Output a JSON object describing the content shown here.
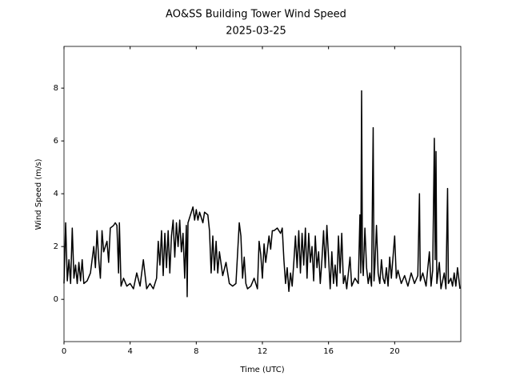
{
  "chart_data": {
    "type": "line",
    "title": "AO&SS Building Tower Wind Speed",
    "subtitle": "2025-03-25",
    "xlabel": "Time (UTC)",
    "ylabel": "Wind Speed (m/s)",
    "color": "#000000",
    "xlim": [
      0,
      24
    ],
    "ylim": [
      -1.6,
      9.58
    ],
    "xticks": [
      0,
      4,
      8,
      12,
      16,
      20
    ],
    "yticks": [
      0,
      2,
      4,
      6,
      8
    ],
    "x": [
      0,
      0.1,
      0.2,
      0.3,
      0.4,
      0.5,
      0.6,
      0.7,
      0.8,
      0.9,
      1.0,
      1.1,
      1.2,
      1.4,
      1.6,
      1.8,
      1.9,
      2.0,
      2.1,
      2.2,
      2.3,
      2.4,
      2.6,
      2.7,
      2.8,
      3.0,
      3.1,
      3.2,
      3.3,
      3.35,
      3.45,
      3.6,
      3.8,
      4.0,
      4.2,
      4.4,
      4.6,
      4.8,
      5.0,
      5.2,
      5.4,
      5.6,
      5.7,
      5.8,
      5.9,
      6.0,
      6.1,
      6.2,
      6.3,
      6.4,
      6.5,
      6.6,
      6.7,
      6.8,
      6.9,
      7.0,
      7.1,
      7.2,
      7.3,
      7.4,
      7.45,
      7.5,
      7.6,
      7.8,
      7.9,
      8.0,
      8.1,
      8.2,
      8.4,
      8.5,
      8.7,
      8.8,
      8.9,
      9.0,
      9.1,
      9.2,
      9.3,
      9.4,
      9.6,
      9.8,
      10.0,
      10.2,
      10.4,
      10.6,
      10.7,
      10.8,
      10.9,
      11.0,
      11.1,
      11.3,
      11.5,
      11.7,
      11.8,
      11.9,
      12.0,
      12.1,
      12.2,
      12.4,
      12.5,
      12.6,
      12.7,
      12.9,
      13.1,
      13.2,
      13.3,
      13.4,
      13.5,
      13.6,
      13.7,
      13.8,
      13.9,
      14.0,
      14.1,
      14.2,
      14.3,
      14.4,
      14.5,
      14.6,
      14.7,
      14.8,
      14.9,
      15.0,
      15.1,
      15.2,
      15.3,
      15.4,
      15.5,
      15.6,
      15.7,
      15.8,
      15.9,
      16.0,
      16.1,
      16.2,
      16.3,
      16.4,
      16.5,
      16.6,
      16.7,
      16.8,
      16.9,
      17.0,
      17.1,
      17.3,
      17.4,
      17.6,
      17.8,
      17.9,
      17.95,
      18.0,
      18.05,
      18.1,
      18.2,
      18.3,
      18.4,
      18.5,
      18.6,
      18.7,
      18.75,
      18.8,
      18.9,
      19.0,
      19.1,
      19.2,
      19.3,
      19.4,
      19.5,
      19.6,
      19.7,
      19.8,
      20.0,
      20.1,
      20.2,
      20.4,
      20.6,
      20.8,
      21.0,
      21.2,
      21.4,
      21.5,
      21.55,
      21.7,
      21.9,
      22.1,
      22.2,
      22.3,
      22.4,
      22.45,
      22.5,
      22.55,
      22.7,
      22.8,
      23.0,
      23.1,
      23.2,
      23.25,
      23.4,
      23.5,
      23.6,
      23.7,
      23.8,
      23.95
    ],
    "values": [
      0.6,
      2.9,
      0.7,
      1.5,
      0.6,
      2.7,
      0.8,
      1.3,
      0.6,
      1.4,
      0.7,
      1.5,
      0.6,
      0.7,
      1.0,
      2.0,
      1.2,
      2.6,
      1.5,
      0.8,
      2.6,
      1.8,
      2.2,
      1.4,
      2.7,
      2.8,
      2.9,
      2.8,
      1.0,
      2.9,
      0.5,
      0.8,
      0.5,
      0.6,
      0.4,
      1.0,
      0.5,
      1.5,
      0.4,
      0.6,
      0.4,
      0.8,
      2.2,
      1.3,
      2.6,
      0.9,
      2.5,
      1.2,
      2.6,
      1.0,
      2.4,
      3.0,
      1.6,
      2.9,
      2.0,
      3.0,
      1.8,
      2.5,
      0.8,
      2.8,
      0.1,
      2.9,
      3.1,
      3.5,
      3.0,
      3.4,
      3.0,
      3.3,
      2.9,
      3.3,
      3.2,
      2.6,
      1.0,
      2.4,
      1.1,
      2.2,
      1.0,
      1.8,
      0.9,
      1.4,
      0.6,
      0.5,
      0.6,
      2.9,
      2.4,
      0.8,
      1.6,
      0.6,
      0.4,
      0.5,
      0.8,
      0.4,
      2.2,
      1.7,
      0.8,
      2.1,
      1.4,
      2.4,
      1.9,
      2.6,
      2.6,
      2.7,
      2.5,
      2.7,
      1.5,
      0.6,
      1.2,
      0.3,
      1.0,
      0.5,
      1.4,
      2.4,
      1.2,
      2.6,
      1.0,
      2.5,
      1.3,
      2.7,
      0.8,
      2.5,
      1.4,
      2.0,
      0.7,
      2.4,
      1.2,
      1.8,
      0.6,
      1.5,
      2.6,
      1.2,
      2.8,
      1.6,
      0.4,
      1.8,
      0.6,
      1.3,
      0.5,
      2.4,
      1.0,
      2.5,
      0.6,
      0.9,
      0.4,
      1.6,
      0.5,
      0.8,
      0.6,
      3.2,
      1.0,
      7.9,
      1.5,
      0.9,
      2.7,
      1.2,
      0.6,
      1.0,
      0.5,
      6.5,
      0.7,
      1.2,
      2.8,
      1.0,
      0.6,
      1.5,
      0.8,
      0.6,
      1.2,
      0.5,
      1.6,
      0.8,
      2.4,
      0.8,
      1.1,
      0.6,
      0.9,
      0.5,
      1.0,
      0.6,
      0.9,
      4.0,
      0.7,
      1.0,
      0.5,
      1.8,
      0.5,
      1.1,
      6.1,
      1.5,
      5.6,
      0.6,
      1.4,
      0.4,
      1.0,
      0.4,
      4.2,
      0.6,
      0.8,
      0.5,
      1.0,
      0.5,
      1.2,
      0.4
    ]
  }
}
